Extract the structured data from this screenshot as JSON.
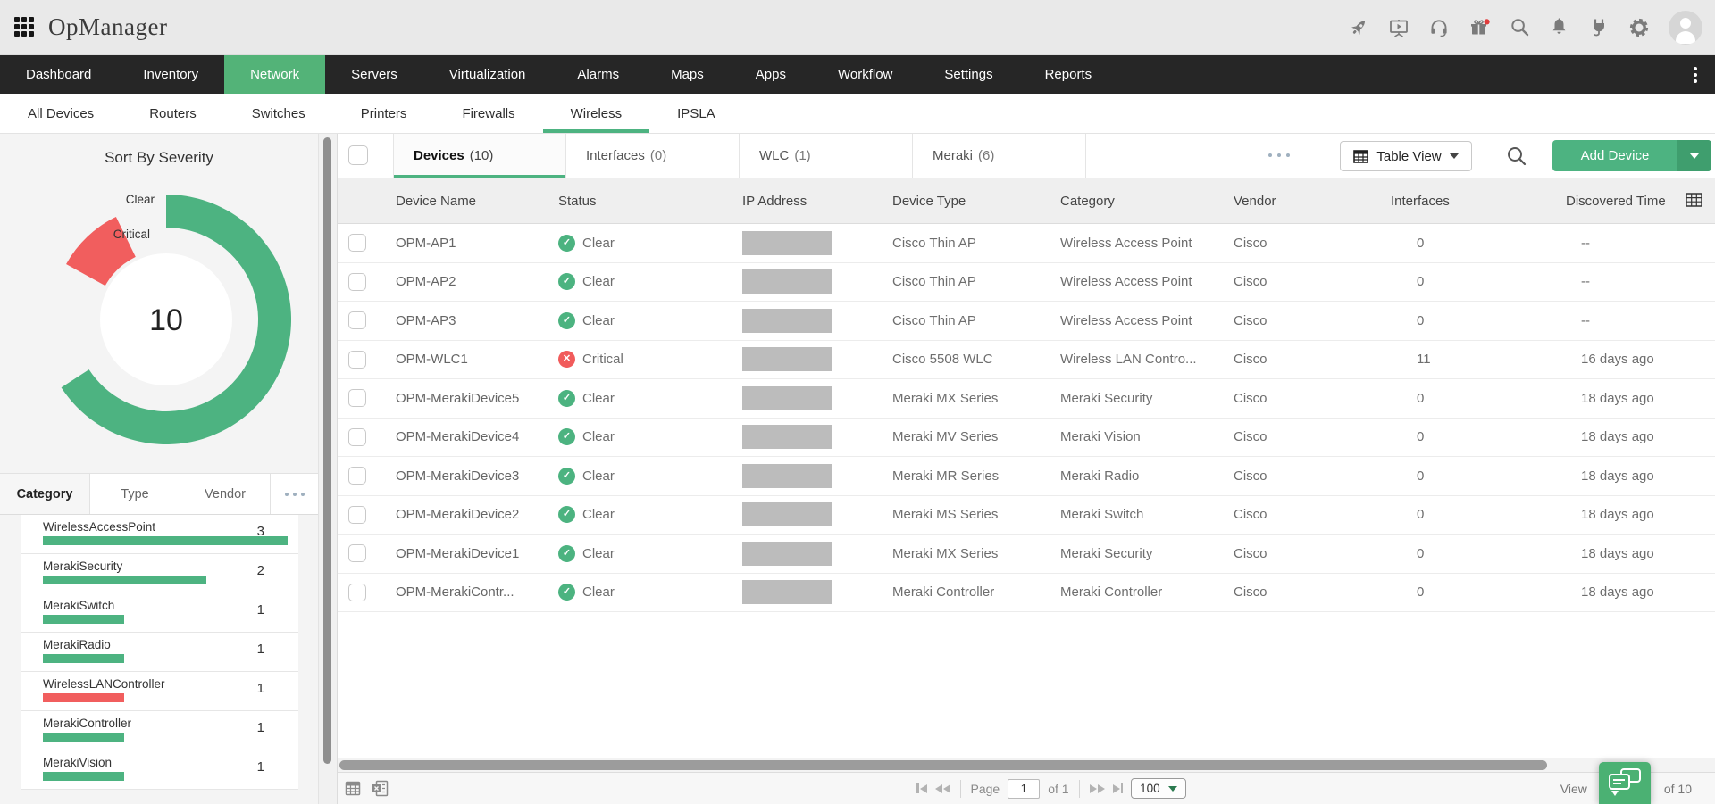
{
  "header": {
    "app_title": "OpManager",
    "icon_names": [
      "apps-grid-icon",
      "rocket-icon",
      "training-video-icon",
      "support-headset-icon",
      "gift-icon",
      "global-search-icon",
      "notification-bell-icon",
      "addons-plug-icon",
      "settings-gear-icon",
      "user-avatar"
    ]
  },
  "nav": {
    "items": [
      {
        "label": "Dashboard",
        "active": false
      },
      {
        "label": "Inventory",
        "active": false
      },
      {
        "label": "Network",
        "active": true
      },
      {
        "label": "Servers",
        "active": false
      },
      {
        "label": "Virtualization",
        "active": false
      },
      {
        "label": "Alarms",
        "active": false
      },
      {
        "label": "Maps",
        "active": false
      },
      {
        "label": "Apps",
        "active": false
      },
      {
        "label": "Workflow",
        "active": false
      },
      {
        "label": "Settings",
        "active": false
      },
      {
        "label": "Reports",
        "active": false
      }
    ],
    "overflow_icon": "kebab-menu-icon"
  },
  "subnav": {
    "items": [
      {
        "label": "All Devices",
        "active": false
      },
      {
        "label": "Routers",
        "active": false
      },
      {
        "label": "Switches",
        "active": false
      },
      {
        "label": "Printers",
        "active": false
      },
      {
        "label": "Firewalls",
        "active": false
      },
      {
        "label": "Wireless",
        "active": true
      },
      {
        "label": "IPSLA",
        "active": false
      }
    ]
  },
  "sidebar": {
    "severity_chart": {
      "type": "donut",
      "title": "Sort By Severity",
      "total": "10",
      "segments": [
        {
          "label": "Clear",
          "value": 9,
          "color": "#4db381"
        },
        {
          "label": "Critical",
          "value": 1,
          "color": "#f15e5e"
        }
      ]
    },
    "group_tabs": {
      "items": [
        {
          "label": "Category",
          "active": true
        },
        {
          "label": "Type",
          "active": false
        },
        {
          "label": "Vendor",
          "active": false
        }
      ]
    },
    "category_bars": {
      "type": "bar",
      "max": 3,
      "items": [
        {
          "label": "WirelessAccessPoint",
          "count": "3",
          "color": "#4db381"
        },
        {
          "label": "MerakiSecurity",
          "count": "2",
          "color": "#4db381"
        },
        {
          "label": "MerakiSwitch",
          "count": "1",
          "color": "#4db381"
        },
        {
          "label": "MerakiRadio",
          "count": "1",
          "color": "#4db381"
        },
        {
          "label": "WirelessLANController",
          "count": "1",
          "color": "#f15e5e"
        },
        {
          "label": "MerakiController",
          "count": "1",
          "color": "#4db381"
        },
        {
          "label": "MerakiVision",
          "count": "1",
          "color": "#4db381"
        }
      ]
    }
  },
  "main": {
    "tabs": [
      {
        "label": "Devices",
        "count": "(10)",
        "active": true
      },
      {
        "label": "Interfaces",
        "count": "(0)",
        "active": false
      },
      {
        "label": "WLC",
        "count": "(1)",
        "active": false
      },
      {
        "label": "Meraki",
        "count": "(6)",
        "active": false
      }
    ],
    "toolbar": {
      "table_view_label": "Table View",
      "add_device_label": "Add Device"
    },
    "table": {
      "columns": [
        "Device Name",
        "Status",
        "IP Address",
        "Device Type",
        "Category",
        "Vendor",
        "Interfaces",
        "Discovered Time"
      ],
      "ip_redacted": true,
      "rows": [
        {
          "name": "OPM-AP1",
          "status": "Clear",
          "severity": "clear",
          "device_type": "Cisco Thin AP",
          "category": "Wireless Access Point",
          "vendor": "Cisco",
          "interfaces": "0",
          "discovered": "--"
        },
        {
          "name": "OPM-AP2",
          "status": "Clear",
          "severity": "clear",
          "device_type": "Cisco Thin AP",
          "category": "Wireless Access Point",
          "vendor": "Cisco",
          "interfaces": "0",
          "discovered": "--"
        },
        {
          "name": "OPM-AP3",
          "status": "Clear",
          "severity": "clear",
          "device_type": "Cisco Thin AP",
          "category": "Wireless Access Point",
          "vendor": "Cisco",
          "interfaces": "0",
          "discovered": "--"
        },
        {
          "name": "OPM-WLC1",
          "status": "Critical",
          "severity": "critical",
          "device_type": "Cisco 5508 WLC",
          "category": "Wireless LAN Contro...",
          "vendor": "Cisco",
          "interfaces": "11",
          "discovered": "16 days ago"
        },
        {
          "name": "OPM-MerakiDevice5",
          "status": "Clear",
          "severity": "clear",
          "device_type": "Meraki MX Series",
          "category": "Meraki Security",
          "vendor": "Cisco",
          "interfaces": "0",
          "discovered": "18 days ago"
        },
        {
          "name": "OPM-MerakiDevice4",
          "status": "Clear",
          "severity": "clear",
          "device_type": "Meraki MV Series",
          "category": "Meraki Vision",
          "vendor": "Cisco",
          "interfaces": "0",
          "discovered": "18 days ago"
        },
        {
          "name": "OPM-MerakiDevice3",
          "status": "Clear",
          "severity": "clear",
          "device_type": "Meraki MR Series",
          "category": "Meraki Radio",
          "vendor": "Cisco",
          "interfaces": "0",
          "discovered": "18 days ago"
        },
        {
          "name": "OPM-MerakiDevice2",
          "status": "Clear",
          "severity": "clear",
          "device_type": "Meraki MS Series",
          "category": "Meraki Switch",
          "vendor": "Cisco",
          "interfaces": "0",
          "discovered": "18 days ago"
        },
        {
          "name": "OPM-MerakiDevice1",
          "status": "Clear",
          "severity": "clear",
          "device_type": "Meraki MX Series",
          "category": "Meraki Security",
          "vendor": "Cisco",
          "interfaces": "0",
          "discovered": "18 days ago"
        },
        {
          "name": "OPM-MerakiContr...",
          "status": "Clear",
          "severity": "clear",
          "device_type": "Meraki Controller",
          "category": "Meraki Controller",
          "vendor": "Cisco",
          "interfaces": "0",
          "discovered": "18 days ago"
        }
      ]
    },
    "footer": {
      "page_label": "Page",
      "page_value": "1",
      "pages_total": "of 1",
      "page_size": "100",
      "view_prefix": "View",
      "view_suffix": "of 10"
    }
  },
  "colors": {
    "accent_green": "#4db381",
    "nav_active_green": "#53b378",
    "add_button_green": "#4db381",
    "critical_red": "#f15e5e",
    "nav_dark": "#262626",
    "topbar_gray": "#e9e9e9"
  }
}
